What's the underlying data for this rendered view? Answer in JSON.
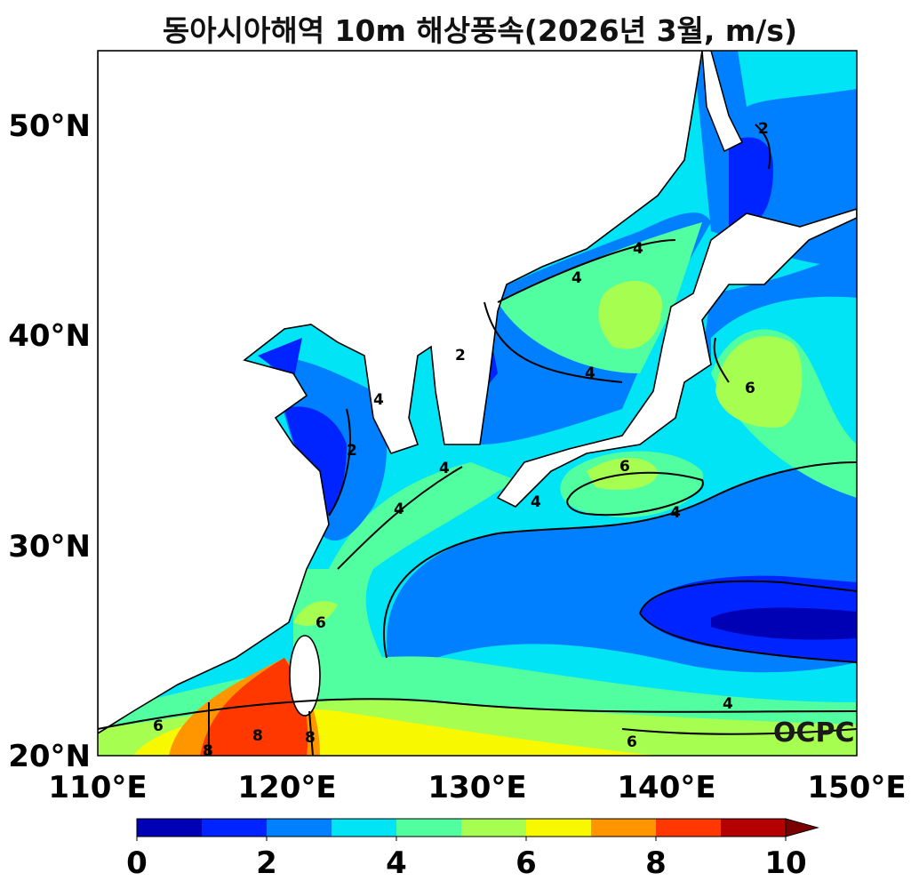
{
  "title": "동아시아해역 10m 해상풍속(2026년 3월, m/s)",
  "logo": "OCPC",
  "chart_data": {
    "type": "filled-contour-map",
    "title": "동아시아해역 10m 해상풍속(2026년 3월, m/s)",
    "variable": "10m sea surface wind speed",
    "units": "m/s",
    "lon_range": [
      110,
      150
    ],
    "lat_range": [
      20,
      53.5
    ],
    "x_ticks": [
      "110°E",
      "120°E",
      "130°E",
      "140°E",
      "150°E"
    ],
    "y_ticks": [
      "20°N",
      "30°N",
      "40°N",
      "50°N"
    ],
    "colorbar": {
      "levels": [
        0,
        1,
        2,
        3,
        4,
        5,
        6,
        7,
        8,
        9,
        10
      ],
      "tick_labels": [
        "0",
        "2",
        "4",
        "6",
        "8",
        "10"
      ],
      "colors": [
        "#0000b4",
        "#0024ff",
        "#0080ff",
        "#00e4f6",
        "#52ffa0",
        "#a6ff50",
        "#f8f800",
        "#ff9600",
        "#ff3800",
        "#b40000"
      ],
      "extend_color": "#7a0000",
      "extend": "max"
    },
    "contour_labels": [
      "2",
      "2",
      "2",
      "4",
      "4",
      "4",
      "4",
      "4",
      "4",
      "4",
      "4",
      "4",
      "6",
      "6",
      "6",
      "6",
      "6",
      "8",
      "8",
      "8"
    ],
    "land_color": "#ffffff"
  }
}
